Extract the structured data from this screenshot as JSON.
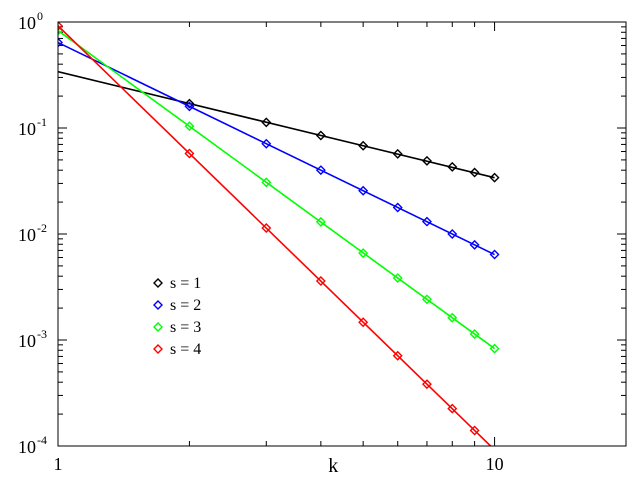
{
  "chart_data": {
    "type": "line",
    "xlabel": "k",
    "x_scale": "log",
    "y_scale": "log",
    "xlim": [
      1,
      20
    ],
    "ylim": [
      0.0001,
      1
    ],
    "x_ticks": [
      {
        "value": 1,
        "label": "1"
      },
      {
        "value": 10,
        "label": "10"
      }
    ],
    "y_ticks": [
      {
        "value": 1,
        "base": "10",
        "exp": "0"
      },
      {
        "value": 0.1,
        "base": "10",
        "exp": "-1"
      },
      {
        "value": 0.01,
        "base": "10",
        "exp": "-2"
      },
      {
        "value": 0.001,
        "base": "10",
        "exp": "-3"
      },
      {
        "value": 0.0001,
        "base": "10",
        "exp": "-4"
      }
    ],
    "legend_position": "lower-left",
    "series": [
      {
        "name": "s = 1",
        "color": "#000000",
        "line": [
          [
            1,
            0.34
          ],
          [
            10,
            0.034
          ]
        ],
        "x": [
          2,
          3,
          4,
          5,
          6,
          7,
          8,
          9,
          10
        ],
        "y": [
          0.17,
          0.113,
          0.085,
          0.068,
          0.057,
          0.049,
          0.043,
          0.038,
          0.034
        ]
      },
      {
        "name": "s = 2",
        "color": "#0000ff",
        "line": [
          [
            1,
            0.64
          ],
          [
            10,
            0.0064
          ]
        ],
        "x": [
          1,
          2,
          3,
          4,
          5,
          6,
          7,
          8,
          9,
          10
        ],
        "y": [
          0.64,
          0.16,
          0.071,
          0.04,
          0.0256,
          0.0178,
          0.0131,
          0.01,
          0.0079,
          0.0064
        ]
      },
      {
        "name": "s = 3",
        "color": "#00ff00",
        "line": [
          [
            1,
            0.83
          ],
          [
            10,
            0.00083
          ]
        ],
        "x": [
          1,
          2,
          3,
          4,
          5,
          6,
          7,
          8,
          9,
          10
        ],
        "y": [
          0.83,
          0.104,
          0.0307,
          0.013,
          0.0066,
          0.00384,
          0.00242,
          0.00162,
          0.00114,
          0.00083
        ]
      },
      {
        "name": "s = 4",
        "color": "#ff0000",
        "line": [
          [
            1,
            0.92
          ],
          [
            10,
            9.2e-05
          ]
        ],
        "x": [
          1,
          2,
          3,
          4,
          5,
          6,
          7,
          8,
          9,
          10
        ],
        "y": [
          0.92,
          0.0575,
          0.0114,
          0.0036,
          0.00147,
          0.00071,
          0.000383,
          0.000225,
          0.00014,
          9.2e-05
        ]
      }
    ]
  }
}
